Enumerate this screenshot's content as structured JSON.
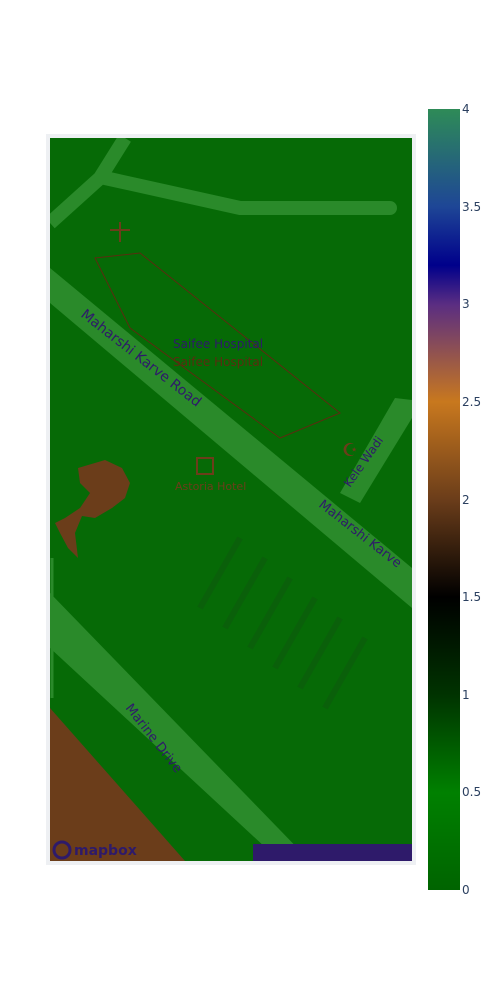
{
  "map": {
    "labels": {
      "road_maharshi_karve_1": "Maharshi Karve Road",
      "road_maharshi_karve_2": "Maharshi Karve",
      "road_marine_drive": "Marine Drive",
      "road_kele_wadi": "Kele Wadi",
      "poi_hospital": "Saifee Hospital",
      "poi_hospital_shadow": "Saifee Hospital",
      "poi_hotel": "Astoria Hotel"
    },
    "attribution": {
      "logo": "mapbox",
      "logo_icon": "mapbox-logo-icon"
    },
    "colors": {
      "land": "#066a06",
      "road": "#2a8a2a",
      "building": "#6b3d1a",
      "label": "#2e1a6a",
      "poi": "#6b3d1a"
    }
  },
  "colorbar": {
    "ticks": [
      "4",
      "3.5",
      "3",
      "2.5",
      "2",
      "1.5",
      "1",
      "0.5",
      "0"
    ],
    "range": [
      0,
      4
    ],
    "colorscale": [
      "#006400",
      "#008000",
      "#003300",
      "#000000",
      "#c8781e",
      "#5a2d82",
      "#00008b",
      "#1e4696",
      "#2e8b57"
    ]
  }
}
